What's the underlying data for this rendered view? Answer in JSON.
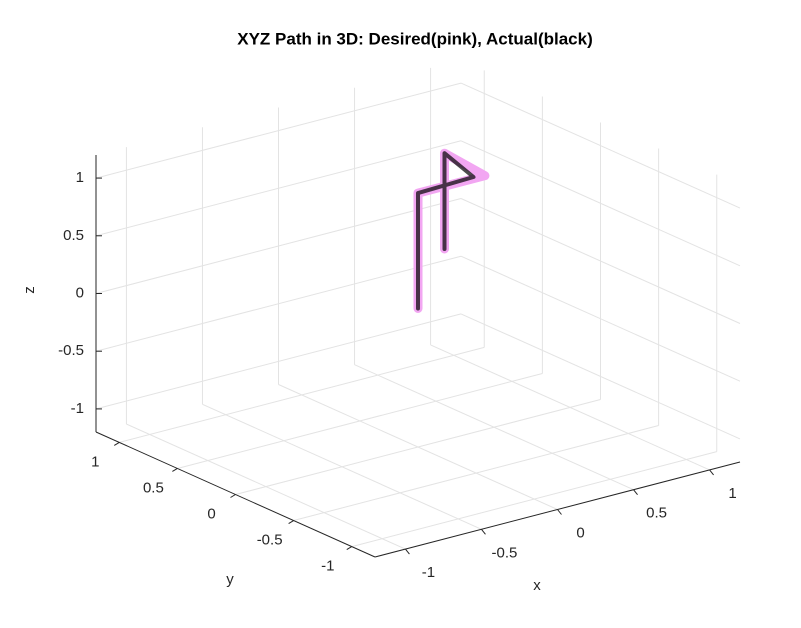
{
  "chart_data": {
    "type": "line3d",
    "title": "XYZ Path in 3D: Desired(pink), Actual(black)",
    "xlabel": "x",
    "ylabel": "y",
    "zlabel": "z",
    "xlim": [
      -1.2,
      1.2
    ],
    "ylim": [
      -1.2,
      1.2
    ],
    "zlim": [
      -1.2,
      1.2
    ],
    "xticks": [
      -1,
      -0.5,
      0,
      0.5,
      1
    ],
    "yticks": [
      -1,
      -0.5,
      0,
      0.5,
      1
    ],
    "zticks": [
      -1,
      -0.5,
      0,
      0.5,
      1
    ],
    "grid": true,
    "series": [
      {
        "color": "#f2a6f2",
        "x": [
          0,
          0,
          0.44,
          0.48,
          0.48
        ],
        "y": [
          0,
          0,
          0,
          0.4,
          0.4
        ],
        "z": [
          0,
          1,
          1,
          1,
          0.17
        ]
      },
      {
        "color": "#000000",
        "x": [
          0,
          0,
          0.38,
          0.48,
          0.48
        ],
        "y": [
          0,
          0,
          0.02,
          0.4,
          0.4
        ],
        "z": [
          0,
          1,
          1,
          1,
          0.17
        ]
      }
    ]
  }
}
